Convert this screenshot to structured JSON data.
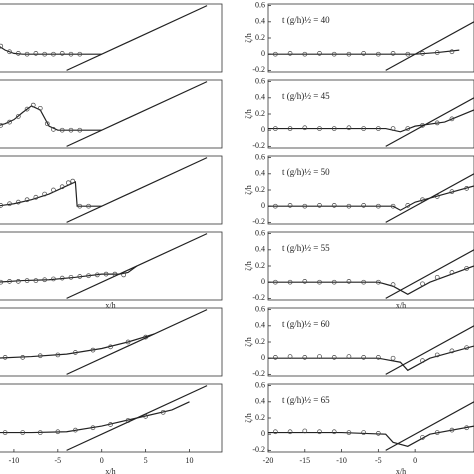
{
  "chart_data": [
    {
      "type": "line",
      "ylim": [
        -0.22,
        0.62
      ],
      "xlim": [
        -11.7,
        13.7
      ],
      "series": [
        {
          "style": "line",
          "color": "#222",
          "x": [
            -12,
            -11,
            -10,
            -9,
            -6,
            -3,
            0
          ],
          "values": [
            0.12,
            0.05,
            0.01,
            0,
            0,
            0,
            0
          ]
        },
        {
          "style": "markers",
          "color": "#444",
          "x": [
            -11.5,
            -10.5,
            -9.5,
            -8.5,
            -7.5,
            -6.5,
            -5.5,
            -4.5,
            -3.5,
            -2.5
          ],
          "values": [
            0.1,
            0.03,
            0.01,
            0,
            0.01,
            0,
            0,
            0.01,
            0,
            0
          ]
        },
        {
          "style": "line",
          "color": "#222",
          "x": [
            -4,
            12
          ],
          "values": [
            -0.2,
            0.6
          ]
        }
      ]
    },
    {
      "type": "line",
      "ylim": [
        -0.22,
        0.62
      ],
      "xlim": [
        -11.7,
        13.7
      ],
      "series": [
        {
          "style": "line",
          "color": "#222",
          "x": [
            -12,
            -11,
            -10,
            -9,
            -8,
            -7,
            -6,
            -5,
            -3,
            0
          ],
          "values": [
            0.05,
            0.08,
            0.13,
            0.22,
            0.3,
            0.25,
            0.05,
            0,
            0,
            0
          ]
        },
        {
          "style": "markers",
          "color": "#444",
          "x": [
            -11.5,
            -10.5,
            -9.5,
            -8.5,
            -7.8,
            -7,
            -6.2,
            -5.5,
            -4.5,
            -3.5,
            -2.5
          ],
          "values": [
            0.06,
            0.1,
            0.17,
            0.26,
            0.31,
            0.27,
            0.08,
            0.01,
            0,
            0,
            0
          ]
        },
        {
          "style": "line",
          "color": "#222",
          "x": [
            -4,
            12
          ],
          "values": [
            -0.2,
            0.6
          ]
        }
      ]
    },
    {
      "type": "line",
      "ylim": [
        -0.22,
        0.62
      ],
      "xlim": [
        -11.7,
        13.7
      ],
      "series": [
        {
          "style": "line",
          "color": "#222",
          "x": [
            -12,
            -10,
            -8,
            -6,
            -4,
            -3,
            -2.8,
            -2,
            0
          ],
          "values": [
            0,
            0.03,
            0.08,
            0.15,
            0.25,
            0.3,
            0,
            0,
            0
          ]
        },
        {
          "style": "markers",
          "color": "#444",
          "x": [
            -11.5,
            -10.5,
            -9.5,
            -8.5,
            -7.5,
            -6.5,
            -5.5,
            -4.5,
            -3.8,
            -3.3,
            -2.5,
            -1.5
          ],
          "values": [
            0.01,
            0.03,
            0.05,
            0.08,
            0.11,
            0.15,
            0.2,
            0.24,
            0.29,
            0.31,
            0,
            0
          ]
        },
        {
          "style": "line",
          "color": "#222",
          "x": [
            -4,
            12
          ],
          "values": [
            -0.2,
            0.6
          ]
        }
      ]
    },
    {
      "type": "line",
      "ylim": [
        -0.22,
        0.62
      ],
      "xlim": [
        -11.7,
        13.7
      ],
      "xlabel": "x/h",
      "series": [
        {
          "style": "line",
          "color": "#222",
          "x": [
            -12,
            -9,
            -6,
            -3,
            0,
            2,
            3,
            4
          ],
          "values": [
            0,
            0.02,
            0.03,
            0.06,
            0.1,
            0.1,
            0.12,
            0.2
          ]
        },
        {
          "style": "markers",
          "color": "#444",
          "x": [
            -11.5,
            -10.5,
            -9.5,
            -8.5,
            -7.5,
            -6.5,
            -5.5,
            -4.5,
            -3.5,
            -2.5,
            -1.5,
            -0.5,
            0.5,
            1.5,
            2.5
          ],
          "values": [
            0,
            0.01,
            0.01,
            0.02,
            0.02,
            0.03,
            0.04,
            0.05,
            0.06,
            0.07,
            0.08,
            0.09,
            0.1,
            0.1,
            0.09
          ]
        },
        {
          "style": "line",
          "color": "#222",
          "x": [
            -4,
            12
          ],
          "values": [
            -0.2,
            0.6
          ]
        }
      ]
    },
    {
      "type": "line",
      "ylim": [
        -0.22,
        0.62
      ],
      "xlim": [
        -11.7,
        13.7
      ],
      "series": [
        {
          "style": "line",
          "color": "#222",
          "x": [
            -12,
            -8,
            -4,
            0,
            3,
            6
          ],
          "values": [
            0,
            0.02,
            0.05,
            0.12,
            0.2,
            0.3
          ]
        },
        {
          "style": "markers",
          "color": "#444",
          "x": [
            -11,
            -9,
            -7,
            -5,
            -3,
            -1,
            1,
            3,
            5
          ],
          "values": [
            0.01,
            0.01,
            0.03,
            0.04,
            0.07,
            0.1,
            0.14,
            0.2,
            0.26
          ]
        },
        {
          "style": "line",
          "color": "#222",
          "x": [
            -4,
            12
          ],
          "values": [
            -0.2,
            0.6
          ]
        }
      ]
    },
    {
      "type": "line",
      "ylim": [
        -0.22,
        0.62
      ],
      "xlim": [
        -11.7,
        13.7
      ],
      "xlabel": "x/h",
      "xticks": [
        -10,
        -5,
        0,
        5,
        10
      ],
      "series": [
        {
          "style": "line",
          "color": "#222",
          "x": [
            -12,
            -8,
            -4,
            0,
            4,
            8,
            10
          ],
          "values": [
            0.02,
            0.02,
            0.03,
            0.1,
            0.2,
            0.3,
            0.4
          ]
        },
        {
          "style": "markers",
          "color": "#444",
          "x": [
            -11,
            -9,
            -7,
            -5,
            -3,
            -1,
            1,
            3,
            5,
            7
          ],
          "values": [
            0.02,
            0.02,
            0.02,
            0.03,
            0.05,
            0.08,
            0.12,
            0.17,
            0.22,
            0.27
          ]
        },
        {
          "style": "line",
          "color": "#222",
          "x": [
            -4,
            12
          ],
          "values": [
            -0.2,
            0.6
          ]
        }
      ]
    },
    {
      "type": "line",
      "ylim": [
        -0.22,
        0.62
      ],
      "xlim": [
        -20,
        8
      ],
      "yticks": [
        0.6,
        0.4,
        0.2,
        0,
        -0.2
      ],
      "ylabel": "ζ/h",
      "annotation": "t (g/h)½ = 40",
      "series": [
        {
          "style": "line",
          "color": "#222",
          "x": [
            -20,
            -10,
            -2,
            0,
            3,
            6
          ],
          "values": [
            0,
            0,
            0,
            0,
            0.02,
            0.05
          ]
        },
        {
          "style": "markers",
          "color": "#444",
          "x": [
            -19,
            -17,
            -15,
            -13,
            -11,
            -9,
            -7,
            -5,
            -3,
            -1,
            1,
            3,
            5
          ],
          "values": [
            0,
            0.01,
            0,
            0.01,
            0,
            0,
            0.01,
            0,
            0.01,
            0,
            0.01,
            0.02,
            0.03
          ]
        },
        {
          "style": "line",
          "color": "#222",
          "x": [
            -4,
            12
          ],
          "values": [
            -0.2,
            0.6
          ]
        }
      ]
    },
    {
      "type": "line",
      "ylim": [
        -0.22,
        0.62
      ],
      "xlim": [
        -20,
        8
      ],
      "yticks": [
        0.6,
        0.4,
        0.2,
        0,
        -0.2
      ],
      "ylabel": "ζ/h",
      "annotation": "t (g/h)½ = 45",
      "series": [
        {
          "style": "line",
          "color": "#222",
          "x": [
            -20,
            -10,
            -4,
            -2,
            0,
            4,
            8
          ],
          "values": [
            0.02,
            0.02,
            0.02,
            -0.02,
            0.05,
            0.1,
            0.25
          ]
        },
        {
          "style": "markers",
          "color": "#444",
          "x": [
            -19,
            -17,
            -15,
            -13,
            -11,
            -9,
            -7,
            -5,
            -3,
            -1,
            1,
            3,
            5
          ],
          "values": [
            0.02,
            0.02,
            0.03,
            0.02,
            0.02,
            0.03,
            0.02,
            0.02,
            0.02,
            0.02,
            0.06,
            0.09,
            0.14
          ]
        },
        {
          "style": "line",
          "color": "#222",
          "x": [
            -4,
            12
          ],
          "values": [
            -0.2,
            0.6
          ]
        }
      ]
    },
    {
      "type": "line",
      "ylim": [
        -0.22,
        0.62
      ],
      "xlim": [
        -20,
        8
      ],
      "yticks": [
        0.6,
        0.4,
        0.2,
        0,
        -0.2
      ],
      "ylabel": "ζ/h",
      "annotation": "t (g/h)½ = 50",
      "series": [
        {
          "style": "line",
          "color": "#222",
          "x": [
            -20,
            -10,
            -5,
            -3,
            -2,
            0,
            4,
            8
          ],
          "values": [
            0,
            0,
            0,
            0,
            -0.05,
            0.05,
            0.15,
            0.25
          ]
        },
        {
          "style": "markers",
          "color": "#444",
          "x": [
            -19,
            -17,
            -15,
            -13,
            -11,
            -9,
            -7,
            -5,
            -3,
            -1,
            1,
            3,
            5,
            7
          ],
          "values": [
            0,
            0.01,
            0,
            0.01,
            0.01,
            0,
            0.01,
            0,
            0,
            0.01,
            0.08,
            0.12,
            0.18,
            0.22
          ]
        },
        {
          "style": "line",
          "color": "#222",
          "x": [
            -4,
            12
          ],
          "values": [
            -0.2,
            0.6
          ]
        }
      ]
    },
    {
      "type": "line",
      "ylim": [
        -0.22,
        0.62
      ],
      "xlim": [
        -20,
        8
      ],
      "yticks": [
        0.6,
        0.4,
        0.2,
        0,
        -0.2
      ],
      "ylabel": "ζ/h",
      "annotation": "t (g/h)½ = 55",
      "xlabel": "x/h",
      "series": [
        {
          "style": "line",
          "color": "#222",
          "x": [
            -20,
            -10,
            -5,
            -3,
            -1,
            2,
            8
          ],
          "values": [
            0,
            0,
            0,
            -0.05,
            -0.15,
            0,
            0.2
          ]
        },
        {
          "style": "markers",
          "color": "#444",
          "x": [
            -19,
            -17,
            -15,
            -13,
            -11,
            -9,
            -7,
            -5,
            -3,
            1,
            3,
            5,
            7
          ],
          "values": [
            0,
            0,
            0.01,
            0,
            0,
            0.01,
            0,
            0,
            -0.03,
            -0.02,
            0.06,
            0.12,
            0.17
          ]
        },
        {
          "style": "line",
          "color": "#222",
          "x": [
            -4,
            12
          ],
          "values": [
            -0.2,
            0.6
          ]
        }
      ]
    },
    {
      "type": "line",
      "ylim": [
        -0.22,
        0.62
      ],
      "xlim": [
        -20,
        8
      ],
      "yticks": [
        0.6,
        0.4,
        0.2,
        0,
        -0.2
      ],
      "ylabel": "ζ/h",
      "annotation": "t (g/h)½ = 60",
      "series": [
        {
          "style": "line",
          "color": "#222",
          "x": [
            -20,
            -10,
            -5,
            -2,
            -1,
            2,
            8
          ],
          "values": [
            0,
            0,
            0,
            -0.05,
            -0.15,
            0,
            0.15
          ]
        },
        {
          "style": "markers",
          "color": "#444",
          "x": [
            -19,
            -17,
            -15,
            -13,
            -11,
            -9,
            -7,
            -5,
            -3,
            1,
            3,
            5,
            7
          ],
          "values": [
            0.01,
            0.02,
            0.01,
            0.02,
            0.01,
            0.02,
            0.01,
            0.01,
            0,
            -0.03,
            0.04,
            0.09,
            0.13
          ]
        },
        {
          "style": "line",
          "color": "#222",
          "x": [
            -4,
            12
          ],
          "values": [
            -0.2,
            0.6
          ]
        }
      ]
    },
    {
      "type": "line",
      "ylim": [
        -0.22,
        0.62
      ],
      "xlim": [
        -20,
        8
      ],
      "yticks": [
        0.6,
        0.4,
        0.2,
        0,
        -0.2
      ],
      "ylabel": "ζ/h",
      "annotation": "t (g/h)½ = 65",
      "xlabel": "x/h",
      "xticks": [
        -20,
        -15,
        -10,
        -5,
        0
      ],
      "series": [
        {
          "style": "line",
          "color": "#222",
          "x": [
            -20,
            -10,
            -4,
            -3,
            -1,
            2,
            8
          ],
          "values": [
            0.02,
            0.02,
            0,
            -0.1,
            -0.15,
            0,
            0.1
          ]
        },
        {
          "style": "markers",
          "color": "#444",
          "x": [
            -19,
            -17,
            -15,
            -13,
            -11,
            -9,
            -7,
            -5,
            1,
            3,
            5,
            7
          ],
          "values": [
            0.03,
            0.03,
            0.04,
            0.03,
            0.03,
            0.02,
            0.02,
            0.01,
            -0.04,
            0.02,
            0.05,
            0.08
          ]
        },
        {
          "style": "line",
          "color": "#222",
          "x": [
            -4,
            12
          ],
          "values": [
            -0.2,
            0.6
          ]
        }
      ]
    }
  ]
}
